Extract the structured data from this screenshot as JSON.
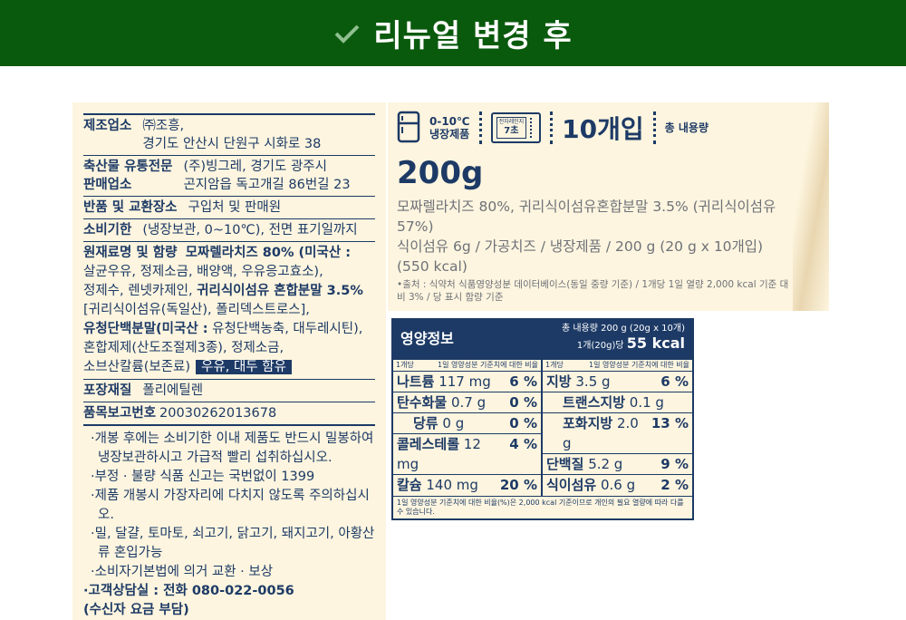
{
  "header": {
    "title": "리뉴얼 변경 후",
    "icon": "check-icon",
    "bg_color": "#0a5a0d"
  },
  "label": {
    "rows": [
      {
        "label": "제조업소",
        "lines": [
          "㈜조흥,",
          "경기도 안산시 단원구 시화로 38"
        ]
      },
      {
        "label": "축산물 유통전문",
        "label2": "판매업소",
        "lines": [
          "(주)빙그레, 경기도 광주시",
          "곤지암읍 독고개길 86번길 23"
        ]
      },
      {
        "label": "반품 및 교환장소",
        "lines": [
          "구입처 및 판매원"
        ]
      },
      {
        "label": "소비기한",
        "lines": [
          "(냉장보관, 0~10℃), 전면 표기일까지"
        ]
      }
    ],
    "ingredients": {
      "label": "원재료명 및 함량",
      "b1": "모짜렐라치즈 80% (미국산 :",
      "t1": "살균우유, 정제소금, 배양액, 우유응고효소),",
      "t2": "정제수, 렌넷카제인,",
      "b2": "귀리식이섬유 혼합분말 3.5%",
      "t3": "[귀리식이섬유(독일산), 폴리덱스트로스],",
      "b3": "유청단백분말(미국산 :",
      "t4": "유청단백농축, 대두레시틴),",
      "t5": "혼합제제(산도조절제3종), 정제소금,",
      "t6": "소브산칼륨(보존료)",
      "allergen": "우유, 대두 함유"
    },
    "packaging": {
      "label": "포장재질",
      "value": "폴리에틸렌"
    },
    "report": {
      "label": "품목보고번호",
      "value": "20030262013678"
    },
    "notes": [
      "·개봉 후에는 소비기한 이내 제품도 반드시 밀봉하여 냉장보관하시고 가급적 빨리 섭취하십시오.",
      "·부정 · 불량 식품 신고는 국번없이 1399",
      "·제품 개봉시 가장자리에 다치지 않도록 주의하십시오.",
      "·밀, 달걀, 토마토, 쇠고기, 닭고기, 돼지고기, 아황산류 혼입가능",
      "·소비자기본법에 의거 교환 · 보상"
    ],
    "contact": "·고객상담실 : 전화 080-022-0056",
    "contact2": "(수신자 요금 부담)"
  },
  "product": {
    "temp": "0-10℃",
    "storage": "냉장제품",
    "microwave_label": "전자레인지",
    "microwave_time": "7초",
    "count": "10개입",
    "total_label": "총 내용량",
    "total": "200g",
    "desc1": "모짜렐라치즈 80%, 귀리식이섬유혼합분말 3.5% (귀리식이섬유 57%)",
    "desc2": "식이섬유 6g / 가공치즈 / 냉장제품 / 200 g (20 g x 10개입) (550 kcal)",
    "source": "•출처 : 식약처 식품영양성분 데이터베이스(동일 중량 기준) / 1개당 1일 열량 2,000 kcal 기준 대비 3% / 당 표시 함량 기준"
  },
  "nutrition": {
    "title": "영양정보",
    "total": "총 내용량 200 g (20g x 10개)",
    "per": "1개(20g)당",
    "kcal": "55 kcal",
    "sub_left": "1개당",
    "sub_right": "1일 영양성분 기준치에 대한 비율",
    "left": [
      {
        "n": "나트륨",
        "v": "117 mg",
        "p": "6 %"
      },
      {
        "n": "탄수화물",
        "v": "0.7 g",
        "p": "0 %"
      },
      {
        "n": "당류",
        "v": "0 g",
        "p": "0 %",
        "indent": true
      },
      {
        "n": "콜레스테롤",
        "v": "12 mg",
        "p": "4 %"
      },
      {
        "n": "칼슘",
        "v": "140 mg",
        "p": "20 %"
      }
    ],
    "right": [
      {
        "n": "지방",
        "v": "3.5 g",
        "p": "6 %"
      },
      {
        "n": "트랜스지방",
        "v": "0.1 g",
        "p": "",
        "indent": true
      },
      {
        "n": "포화지방",
        "v": "2.0 g",
        "p": "13 %",
        "indent": true
      },
      {
        "n": "단백질",
        "v": "5.2 g",
        "p": "9 %"
      },
      {
        "n": "식이섬유",
        "v": "0.6 g",
        "p": "2 %"
      }
    ],
    "footnote": "1일 영양성분 기준치에 대한 비율(%)은 2,000 kcal 기준이므로 개인의 필요 열량에 따라 다를 수 있습니다."
  }
}
